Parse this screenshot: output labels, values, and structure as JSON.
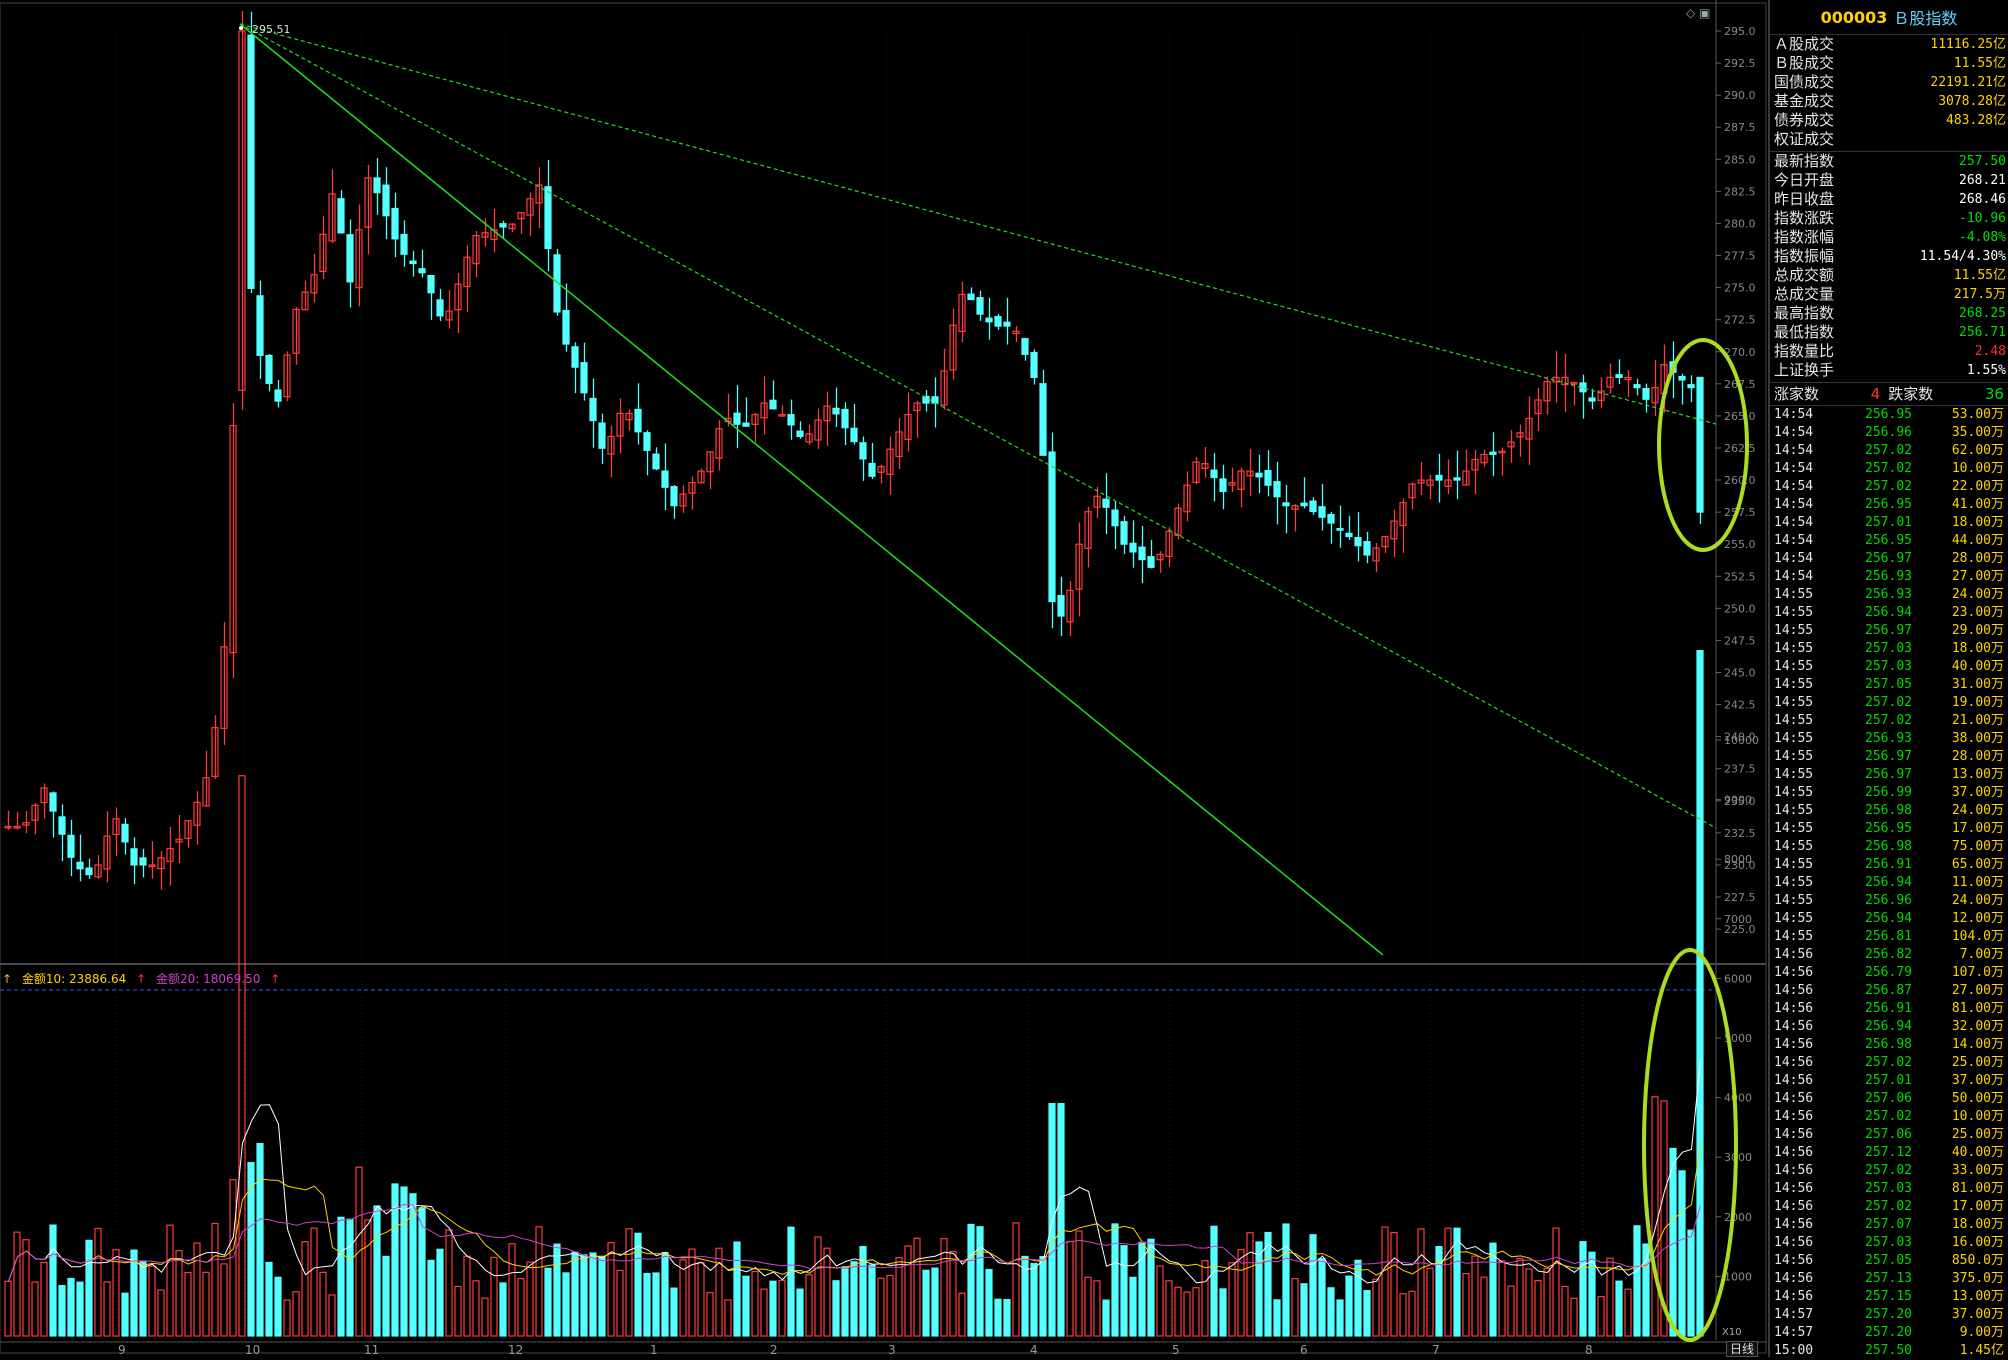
{
  "header": {
    "code": "000003",
    "name": "Ｂ股指数"
  },
  "turnover": [
    {
      "label": "Ａ股成交",
      "value": "11116.25亿"
    },
    {
      "label": "Ｂ股成交",
      "value": "11.55亿"
    },
    {
      "label": "国债成交",
      "value": "22191.21亿"
    },
    {
      "label": "基金成交",
      "value": "3078.28亿"
    },
    {
      "label": "债券成交",
      "value": "483.28亿"
    },
    {
      "label": "权证成交",
      "value": ""
    }
  ],
  "stats": [
    {
      "label": "最新指数",
      "value": "257.50",
      "color": "green"
    },
    {
      "label": "今日开盘",
      "value": "268.21",
      "color": "white"
    },
    {
      "label": "昨日收盘",
      "value": "268.46",
      "color": "white"
    },
    {
      "label": "指数涨跌",
      "value": "-10.96",
      "color": "green"
    },
    {
      "label": "指数涨幅",
      "value": "-4.08%",
      "color": "green"
    },
    {
      "label": "指数振幅",
      "value": "11.54/4.30%",
      "color": "white"
    },
    {
      "label": "总成交额",
      "value": "11.55亿",
      "color": "yellow"
    },
    {
      "label": "总成交量",
      "value": "217.5万",
      "color": "yellow"
    },
    {
      "label": "最高指数",
      "value": "268.25",
      "color": "green"
    },
    {
      "label": "最低指数",
      "value": "256.71",
      "color": "green"
    },
    {
      "label": "指数量比",
      "value": "2.48",
      "color": "red"
    },
    {
      "label": "上证换手",
      "value": "1.55%",
      "color": "white"
    }
  ],
  "counts": {
    "up_label": "涨家数",
    "up_value": "4",
    "down_label": "跌家数",
    "down_value": "36"
  },
  "ticks": [
    [
      "14:54",
      "256.95",
      "53.00万"
    ],
    [
      "14:54",
      "256.96",
      "35.00万"
    ],
    [
      "14:54",
      "257.02",
      "62.00万"
    ],
    [
      "14:54",
      "257.02",
      "10.00万"
    ],
    [
      "14:54",
      "257.02",
      "22.00万"
    ],
    [
      "14:54",
      "256.95",
      "41.00万"
    ],
    [
      "14:54",
      "257.01",
      "18.00万"
    ],
    [
      "14:54",
      "256.95",
      "44.00万"
    ],
    [
      "14:54",
      "256.97",
      "28.00万"
    ],
    [
      "14:54",
      "256.93",
      "27.00万"
    ],
    [
      "14:55",
      "256.93",
      "24.00万"
    ],
    [
      "14:55",
      "256.94",
      "23.00万"
    ],
    [
      "14:55",
      "256.97",
      "29.00万"
    ],
    [
      "14:55",
      "257.03",
      "18.00万"
    ],
    [
      "14:55",
      "257.03",
      "40.00万"
    ],
    [
      "14:55",
      "257.05",
      "31.00万"
    ],
    [
      "14:55",
      "257.02",
      "19.00万"
    ],
    [
      "14:55",
      "257.02",
      "21.00万"
    ],
    [
      "14:55",
      "256.93",
      "38.00万"
    ],
    [
      "14:55",
      "256.97",
      "28.00万"
    ],
    [
      "14:55",
      "256.97",
      "13.00万"
    ],
    [
      "14:55",
      "256.99",
      "37.00万"
    ],
    [
      "14:55",
      "256.98",
      "24.00万"
    ],
    [
      "14:55",
      "256.95",
      "17.00万"
    ],
    [
      "14:55",
      "256.98",
      "75.00万"
    ],
    [
      "14:55",
      "256.91",
      "65.00万"
    ],
    [
      "14:55",
      "256.94",
      "11.00万"
    ],
    [
      "14:55",
      "256.96",
      "24.00万"
    ],
    [
      "14:55",
      "256.94",
      "12.00万"
    ],
    [
      "14:55",
      "256.81",
      "104.0万"
    ],
    [
      "14:56",
      "256.82",
      "7.00万"
    ],
    [
      "14:56",
      "256.79",
      "107.0万"
    ],
    [
      "14:56",
      "256.87",
      "27.00万"
    ],
    [
      "14:56",
      "256.91",
      "81.00万"
    ],
    [
      "14:56",
      "256.94",
      "32.00万"
    ],
    [
      "14:56",
      "256.98",
      "14.00万"
    ],
    [
      "14:56",
      "257.02",
      "25.00万"
    ],
    [
      "14:56",
      "257.01",
      "37.00万"
    ],
    [
      "14:56",
      "257.06",
      "50.00万"
    ],
    [
      "14:56",
      "257.02",
      "10.00万"
    ],
    [
      "14:56",
      "257.06",
      "25.00万"
    ],
    [
      "14:56",
      "257.12",
      "40.00万"
    ],
    [
      "14:56",
      "257.02",
      "33.00万"
    ],
    [
      "14:56",
      "257.03",
      "81.00万"
    ],
    [
      "14:56",
      "257.02",
      "17.00万"
    ],
    [
      "14:56",
      "257.07",
      "18.00万"
    ],
    [
      "14:56",
      "257.03",
      "16.00万"
    ],
    [
      "14:56",
      "257.05",
      "850.0万"
    ],
    [
      "14:56",
      "257.13",
      "375.0万"
    ],
    [
      "14:56",
      "257.15",
      "13.00万"
    ],
    [
      "14:57",
      "257.20",
      "37.00万"
    ],
    [
      "14:57",
      "257.20",
      "9.00万"
    ],
    [
      "15:00",
      "257.50",
      "1.45亿"
    ]
  ],
  "chart": {
    "high_label": "295.51",
    "price_axis": [
      "295.0",
      "292.5",
      "290.0",
      "287.5",
      "285.0",
      "282.5",
      "280.0",
      "277.5",
      "275.0",
      "272.5",
      "270.0",
      "267.5",
      "265.0",
      "262.5",
      "260.0",
      "257.5",
      "255.0",
      "252.5",
      "250.0",
      "247.5",
      "245.0",
      "242.5",
      "240.0",
      "237.5",
      "235.0",
      "232.5",
      "230.0",
      "227.5",
      "225.0"
    ],
    "x_axis": [
      "9",
      "10",
      "11",
      "12",
      "1",
      "2",
      "3",
      "4",
      "5",
      "6",
      "7",
      "8"
    ],
    "volume_axis": [
      "10000",
      "9000",
      "8000",
      "7000",
      "6000",
      "5000",
      "4000",
      "3000",
      "2000",
      "1000"
    ],
    "vol_legend": {
      "ma10": "金额10: 23886.64",
      "ma20": "金额20: 18069.50"
    },
    "period_tab": "日线",
    "multiplier": "X10",
    "colors": {
      "up": "#ff3b3b",
      "down": "#54ffff",
      "trend": "#22dd22",
      "highlight": "#aadd22"
    }
  }
}
